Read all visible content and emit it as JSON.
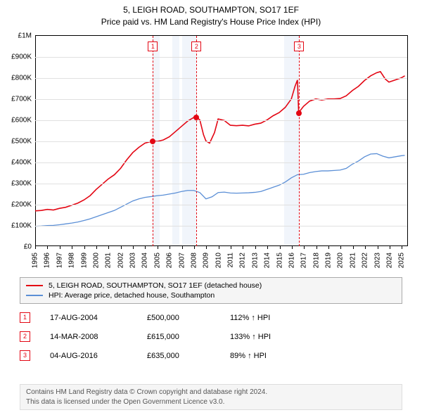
{
  "title_line1": "5, LEIGH ROAD, SOUTHAMPTON, SO17 1EF",
  "title_line2": "Price paid vs. HM Land Registry's House Price Index (HPI)",
  "chart": {
    "type": "line",
    "background_color": "#ffffff",
    "grid_color": "#e0e0e0",
    "axis_color": "#000000",
    "xlim": [
      1995,
      2025.5
    ],
    "ylim": [
      0,
      1000000
    ],
    "yticks": [
      {
        "v": 0,
        "label": "£0"
      },
      {
        "v": 100000,
        "label": "£100K"
      },
      {
        "v": 200000,
        "label": "£200K"
      },
      {
        "v": 300000,
        "label": "£300K"
      },
      {
        "v": 400000,
        "label": "£400K"
      },
      {
        "v": 500000,
        "label": "£500K"
      },
      {
        "v": 600000,
        "label": "£600K"
      },
      {
        "v": 700000,
        "label": "£700K"
      },
      {
        "v": 800000,
        "label": "£800K"
      },
      {
        "v": 900000,
        "label": "£900K"
      },
      {
        "v": 1000000,
        "label": "£1M"
      }
    ],
    "xticks": [
      1995,
      1996,
      1997,
      1998,
      1999,
      2000,
      2001,
      2002,
      2003,
      2004,
      2005,
      2006,
      2007,
      2008,
      2009,
      2010,
      2011,
      2012,
      2013,
      2014,
      2015,
      2016,
      2017,
      2018,
      2019,
      2020,
      2021,
      2022,
      2023,
      2024,
      2025
    ],
    "event_shade_color": "#d7e3f4",
    "shade_ranges": [
      {
        "start": 2004.63,
        "end": 2005.2
      },
      {
        "start": 2006.2,
        "end": 2006.8
      },
      {
        "start": 2007.0,
        "end": 2008.2
      },
      {
        "start": 2015.4,
        "end": 2016.6
      }
    ],
    "series": [
      {
        "id": "subject",
        "label": "5, LEIGH ROAD, SOUTHAMPTON, SO17 1EF (detached house)",
        "color": "#e30613",
        "width": 1.6,
        "points": [
          [
            1995,
            168000
          ],
          [
            1995.5,
            170000
          ],
          [
            1996,
            175000
          ],
          [
            1996.5,
            172000
          ],
          [
            1997,
            180000
          ],
          [
            1997.5,
            185000
          ],
          [
            1998,
            195000
          ],
          [
            1998.5,
            205000
          ],
          [
            1999,
            220000
          ],
          [
            1999.5,
            240000
          ],
          [
            2000,
            270000
          ],
          [
            2000.5,
            295000
          ],
          [
            2001,
            320000
          ],
          [
            2001.5,
            340000
          ],
          [
            2002,
            370000
          ],
          [
            2002.5,
            410000
          ],
          [
            2003,
            445000
          ],
          [
            2003.5,
            470000
          ],
          [
            2004,
            490000
          ],
          [
            2004.63,
            500000
          ],
          [
            2005,
            498000
          ],
          [
            2005.5,
            505000
          ],
          [
            2006,
            520000
          ],
          [
            2006.5,
            545000
          ],
          [
            2007,
            570000
          ],
          [
            2007.5,
            595000
          ],
          [
            2008,
            612000
          ],
          [
            2008.2,
            615000
          ],
          [
            2008.5,
            600000
          ],
          [
            2008.8,
            530000
          ],
          [
            2009,
            500000
          ],
          [
            2009.3,
            490000
          ],
          [
            2009.7,
            540000
          ],
          [
            2010,
            605000
          ],
          [
            2010.5,
            598000
          ],
          [
            2011,
            575000
          ],
          [
            2011.5,
            573000
          ],
          [
            2012,
            575000
          ],
          [
            2012.5,
            572000
          ],
          [
            2013,
            580000
          ],
          [
            2013.5,
            585000
          ],
          [
            2014,
            600000
          ],
          [
            2014.5,
            620000
          ],
          [
            2015,
            635000
          ],
          [
            2015.5,
            660000
          ],
          [
            2016,
            700000
          ],
          [
            2016.3,
            760000
          ],
          [
            2016.5,
            790000
          ],
          [
            2016.6,
            635000
          ],
          [
            2017,
            665000
          ],
          [
            2017.5,
            690000
          ],
          [
            2018,
            700000
          ],
          [
            2018.5,
            695000
          ],
          [
            2019,
            700000
          ],
          [
            2019.5,
            700000
          ],
          [
            2020,
            702000
          ],
          [
            2020.5,
            715000
          ],
          [
            2021,
            740000
          ],
          [
            2021.5,
            760000
          ],
          [
            2022,
            788000
          ],
          [
            2022.5,
            810000
          ],
          [
            2023,
            825000
          ],
          [
            2023.3,
            830000
          ],
          [
            2023.7,
            795000
          ],
          [
            2024,
            780000
          ],
          [
            2024.5,
            790000
          ],
          [
            2025,
            800000
          ],
          [
            2025.3,
            810000
          ]
        ],
        "markers": [
          {
            "x": 2004.63,
            "y": 500000
          },
          {
            "x": 2008.2,
            "y": 615000
          },
          {
            "x": 2016.6,
            "y": 635000
          }
        ]
      },
      {
        "id": "hpi",
        "label": "HPI: Average price, detached house, Southampton",
        "color": "#5b8fd6",
        "width": 1.3,
        "points": [
          [
            1995,
            95000
          ],
          [
            1995.5,
            96000
          ],
          [
            1996,
            98000
          ],
          [
            1996.5,
            99000
          ],
          [
            1997,
            102000
          ],
          [
            1997.5,
            106000
          ],
          [
            1998,
            110000
          ],
          [
            1998.5,
            115000
          ],
          [
            1999,
            122000
          ],
          [
            1999.5,
            130000
          ],
          [
            2000,
            140000
          ],
          [
            2000.5,
            150000
          ],
          [
            2001,
            160000
          ],
          [
            2001.5,
            170000
          ],
          [
            2002,
            185000
          ],
          [
            2002.5,
            200000
          ],
          [
            2003,
            215000
          ],
          [
            2003.5,
            225000
          ],
          [
            2004,
            232000
          ],
          [
            2004.5,
            236000
          ],
          [
            2005,
            240000
          ],
          [
            2005.5,
            243000
          ],
          [
            2006,
            248000
          ],
          [
            2006.5,
            253000
          ],
          [
            2007,
            260000
          ],
          [
            2007.5,
            265000
          ],
          [
            2008,
            265000
          ],
          [
            2008.5,
            255000
          ],
          [
            2009,
            225000
          ],
          [
            2009.5,
            235000
          ],
          [
            2010,
            255000
          ],
          [
            2010.5,
            257000
          ],
          [
            2011,
            253000
          ],
          [
            2011.5,
            252000
          ],
          [
            2012,
            253000
          ],
          [
            2012.5,
            254000
          ],
          [
            2013,
            256000
          ],
          [
            2013.5,
            260000
          ],
          [
            2014,
            270000
          ],
          [
            2014.5,
            280000
          ],
          [
            2015,
            290000
          ],
          [
            2015.5,
            305000
          ],
          [
            2016,
            325000
          ],
          [
            2016.5,
            340000
          ],
          [
            2017,
            342000
          ],
          [
            2017.5,
            350000
          ],
          [
            2018,
            355000
          ],
          [
            2018.5,
            358000
          ],
          [
            2019,
            358000
          ],
          [
            2019.5,
            360000
          ],
          [
            2020,
            362000
          ],
          [
            2020.5,
            370000
          ],
          [
            2021,
            390000
          ],
          [
            2021.5,
            405000
          ],
          [
            2022,
            425000
          ],
          [
            2022.5,
            438000
          ],
          [
            2023,
            440000
          ],
          [
            2023.5,
            428000
          ],
          [
            2024,
            420000
          ],
          [
            2024.5,
            425000
          ],
          [
            2025,
            430000
          ],
          [
            2025.3,
            432000
          ]
        ]
      }
    ],
    "events": [
      {
        "n": "1",
        "x": 2004.63,
        "color": "#e30613",
        "date": "17-AUG-2004",
        "price": "£500,000",
        "hpi": "112% ↑ HPI"
      },
      {
        "n": "2",
        "x": 2008.2,
        "color": "#e30613",
        "date": "14-MAR-2008",
        "price": "£615,000",
        "hpi": "133% ↑ HPI"
      },
      {
        "n": "3",
        "x": 2016.6,
        "color": "#e30613",
        "date": "04-AUG-2016",
        "price": "£635,000",
        "hpi": "89% ↑ HPI"
      }
    ]
  },
  "legend_series": [
    {
      "color": "#e30613",
      "label": "5, LEIGH ROAD, SOUTHAMPTON, SO17 1EF (detached house)"
    },
    {
      "color": "#5b8fd6",
      "label": "HPI: Average price, detached house, Southampton"
    }
  ],
  "attribution_line1": "Contains HM Land Registry data © Crown copyright and database right 2024.",
  "attribution_line2": "This data is licensed under the Open Government Licence v3.0."
}
